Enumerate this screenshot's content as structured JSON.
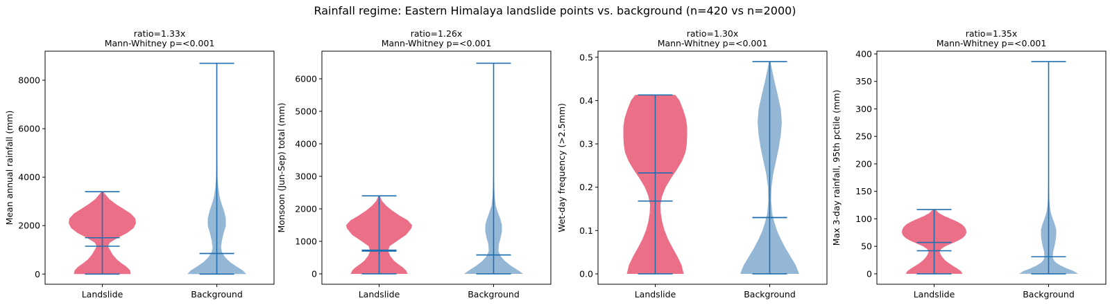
{
  "figure": {
    "suptitle": "Rainfall regime: Eastern Himalaya landslide points vs. background (n=420 vs n=2000)"
  },
  "colors": {
    "landslide_fill": "#e8637d",
    "background_fill": "#8fb3d4",
    "stat_line": "#1f6fb0"
  },
  "chart_data": [
    {
      "type": "violin",
      "title_line1": "ratio=1.33x",
      "title_line2": "Mann-Whitney p=<0.001",
      "ylabel": "Mean annual rainfall (mm)",
      "categories": [
        "Landslide",
        "Background"
      ],
      "ylim": [
        -420,
        9200
      ],
      "yticks": [
        0,
        2000,
        4000,
        6000,
        8000
      ],
      "series": [
        {
          "min": 0,
          "max": 3400,
          "mean": 1500,
          "median": 1150,
          "density": [
            [
              0,
              0.82
            ],
            [
              150,
              0.8
            ],
            [
              300,
              0.7
            ],
            [
              450,
              0.55
            ],
            [
              600,
              0.42
            ],
            [
              800,
              0.3
            ],
            [
              1000,
              0.22
            ],
            [
              1150,
              0.16
            ],
            [
              1300,
              0.22
            ],
            [
              1500,
              0.45
            ],
            [
              1700,
              0.72
            ],
            [
              1900,
              0.9
            ],
            [
              2100,
              0.97
            ],
            [
              2300,
              0.95
            ],
            [
              2500,
              0.82
            ],
            [
              2700,
              0.6
            ],
            [
              2900,
              0.38
            ],
            [
              3100,
              0.2
            ],
            [
              3300,
              0.08
            ],
            [
              3400,
              0.03
            ]
          ]
        },
        {
          "min": 0,
          "max": 8700,
          "mean": 850,
          "median": 850,
          "density": [
            [
              0,
              0.85
            ],
            [
              150,
              0.75
            ],
            [
              300,
              0.58
            ],
            [
              500,
              0.38
            ],
            [
              700,
              0.24
            ],
            [
              900,
              0.15
            ],
            [
              1100,
              0.12
            ],
            [
              1400,
              0.15
            ],
            [
              1700,
              0.2
            ],
            [
              2000,
              0.26
            ],
            [
              2300,
              0.26
            ],
            [
              2600,
              0.21
            ],
            [
              2900,
              0.14
            ],
            [
              3200,
              0.08
            ],
            [
              3600,
              0.04
            ],
            [
              4000,
              0.02
            ],
            [
              5000,
              0.008
            ],
            [
              6500,
              0.005
            ],
            [
              8700,
              0.003
            ]
          ]
        }
      ]
    },
    {
      "type": "violin",
      "title_line1": "ratio=1.26x",
      "title_line2": "Mann-Whitney p=<0.001",
      "ylabel": "Monsoon (Jun-Sep) total (mm)",
      "categories": [
        "Landslide",
        "Background"
      ],
      "ylim": [
        -320,
        6850
      ],
      "yticks": [
        0,
        1000,
        2000,
        3000,
        4000,
        5000,
        6000
      ],
      "series": [
        {
          "min": 0,
          "max": 2400,
          "mean": 730,
          "median": 700,
          "density": [
            [
              0,
              0.82
            ],
            [
              100,
              0.78
            ],
            [
              200,
              0.68
            ],
            [
              300,
              0.55
            ],
            [
              400,
              0.43
            ],
            [
              550,
              0.32
            ],
            [
              700,
              0.26
            ],
            [
              850,
              0.3
            ],
            [
              1000,
              0.5
            ],
            [
              1200,
              0.78
            ],
            [
              1400,
              0.93
            ],
            [
              1500,
              0.95
            ],
            [
              1650,
              0.82
            ],
            [
              1800,
              0.58
            ],
            [
              1950,
              0.37
            ],
            [
              2100,
              0.2
            ],
            [
              2250,
              0.08
            ],
            [
              2400,
              0.02
            ]
          ]
        },
        {
          "min": 0,
          "max": 6480,
          "mean": 580,
          "median": 580,
          "density": [
            [
              0,
              0.85
            ],
            [
              100,
              0.72
            ],
            [
              250,
              0.5
            ],
            [
              400,
              0.32
            ],
            [
              550,
              0.2
            ],
            [
              700,
              0.14
            ],
            [
              900,
              0.15
            ],
            [
              1100,
              0.2
            ],
            [
              1300,
              0.24
            ],
            [
              1500,
              0.24
            ],
            [
              1700,
              0.19
            ],
            [
              1900,
              0.12
            ],
            [
              2100,
              0.06
            ],
            [
              2400,
              0.03
            ],
            [
              3000,
              0.01
            ],
            [
              4500,
              0.005
            ],
            [
              6480,
              0.003
            ]
          ]
        }
      ]
    },
    {
      "type": "violin",
      "title_line1": "ratio=1.30x",
      "title_line2": "Mann-Whitney p=<0.001",
      "ylabel": "Wet-day frequency (>2.5mm)",
      "categories": [
        "Landslide",
        "Background"
      ],
      "ylim": [
        -0.024,
        0.514
      ],
      "yticks": [
        0.0,
        0.1,
        0.2,
        0.3,
        0.4,
        0.5
      ],
      "series": [
        {
          "min": 0,
          "max": 0.413,
          "mean": 0.233,
          "median": 0.168,
          "density": [
            [
              0,
              0.82
            ],
            [
              0.02,
              0.76
            ],
            [
              0.04,
              0.64
            ],
            [
              0.06,
              0.5
            ],
            [
              0.08,
              0.37
            ],
            [
              0.1,
              0.27
            ],
            [
              0.12,
              0.2
            ],
            [
              0.14,
              0.16
            ],
            [
              0.16,
              0.15
            ],
            [
              0.18,
              0.2
            ],
            [
              0.2,
              0.3
            ],
            [
              0.22,
              0.45
            ],
            [
              0.24,
              0.62
            ],
            [
              0.26,
              0.77
            ],
            [
              0.28,
              0.87
            ],
            [
              0.3,
              0.91
            ],
            [
              0.32,
              0.92
            ],
            [
              0.34,
              0.92
            ],
            [
              0.36,
              0.88
            ],
            [
              0.38,
              0.8
            ],
            [
              0.4,
              0.7
            ],
            [
              0.413,
              0.58
            ]
          ]
        },
        {
          "min": 0,
          "max": 0.49,
          "mean": 0.13,
          "median": 0.13,
          "density": [
            [
              0,
              0.85
            ],
            [
              0.02,
              0.75
            ],
            [
              0.04,
              0.6
            ],
            [
              0.06,
              0.45
            ],
            [
              0.08,
              0.32
            ],
            [
              0.1,
              0.21
            ],
            [
              0.12,
              0.13
            ],
            [
              0.14,
              0.07
            ],
            [
              0.17,
              0.04
            ],
            [
              0.2,
              0.05
            ],
            [
              0.23,
              0.1
            ],
            [
              0.26,
              0.18
            ],
            [
              0.29,
              0.26
            ],
            [
              0.32,
              0.32
            ],
            [
              0.35,
              0.35
            ],
            [
              0.38,
              0.32
            ],
            [
              0.41,
              0.24
            ],
            [
              0.44,
              0.15
            ],
            [
              0.47,
              0.07
            ],
            [
              0.49,
              0.02
            ]
          ]
        }
      ]
    },
    {
      "type": "violin",
      "title_line1": "ratio=1.35x",
      "title_line2": "Mann-Whitney p=<0.001",
      "ylabel": "Max 3-day rainfall, 95th pctile (mm)",
      "categories": [
        "Landslide",
        "Background"
      ],
      "ylim": [
        -19,
        405
      ],
      "yticks": [
        0,
        50,
        100,
        150,
        200,
        250,
        300,
        350,
        400
      ],
      "series": [
        {
          "min": 0,
          "max": 117,
          "mean": 57,
          "median": 42,
          "density": [
            [
              0,
              0.82
            ],
            [
              5,
              0.77
            ],
            [
              10,
              0.66
            ],
            [
              15,
              0.53
            ],
            [
              20,
              0.41
            ],
            [
              25,
              0.31
            ],
            [
              30,
              0.24
            ],
            [
              35,
              0.19
            ],
            [
              40,
              0.16
            ],
            [
              45,
              0.2
            ],
            [
              50,
              0.32
            ],
            [
              55,
              0.5
            ],
            [
              60,
              0.68
            ],
            [
              65,
              0.82
            ],
            [
              70,
              0.9
            ],
            [
              75,
              0.93
            ],
            [
              80,
              0.92
            ],
            [
              85,
              0.88
            ],
            [
              90,
              0.8
            ],
            [
              95,
              0.66
            ],
            [
              100,
              0.48
            ],
            [
              105,
              0.3
            ],
            [
              110,
              0.15
            ],
            [
              117,
              0.03
            ]
          ]
        },
        {
          "min": 0,
          "max": 386,
          "mean": 31,
          "median": 31,
          "density": [
            [
              0,
              0.85
            ],
            [
              5,
              0.72
            ],
            [
              10,
              0.52
            ],
            [
              15,
              0.35
            ],
            [
              20,
              0.22
            ],
            [
              25,
              0.15
            ],
            [
              30,
              0.12
            ],
            [
              40,
              0.13
            ],
            [
              50,
              0.17
            ],
            [
              60,
              0.2
            ],
            [
              70,
              0.22
            ],
            [
              80,
              0.22
            ],
            [
              90,
              0.18
            ],
            [
              100,
              0.12
            ],
            [
              110,
              0.07
            ],
            [
              120,
              0.04
            ],
            [
              135,
              0.02
            ],
            [
              160,
              0.01
            ],
            [
              250,
              0.005
            ],
            [
              386,
              0.003
            ]
          ]
        }
      ]
    }
  ]
}
